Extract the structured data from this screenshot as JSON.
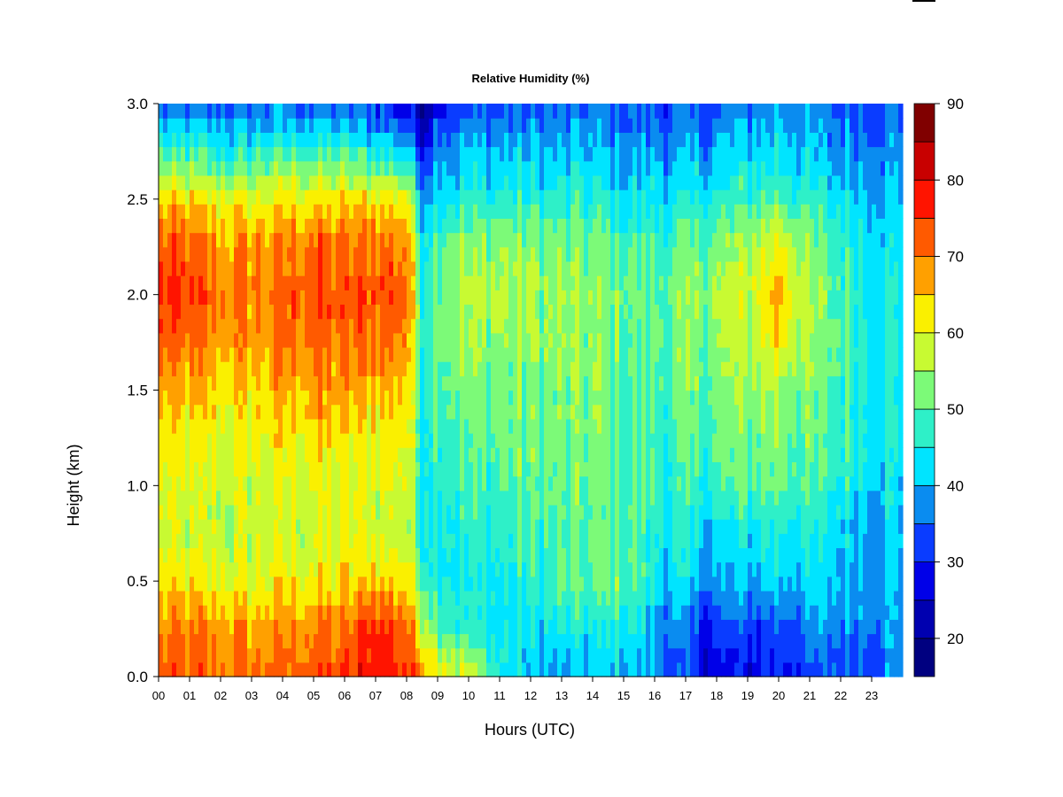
{
  "chart_data": {
    "type": "heatmap",
    "title": "Relative Humidity (%)",
    "xlabel": "Hours (UTC)",
    "ylabel": "Height (km)",
    "xlim": [
      0,
      24
    ],
    "ylim": [
      0.0,
      3.0
    ],
    "x_ticks": [
      "00",
      "01",
      "02",
      "03",
      "04",
      "05",
      "06",
      "07",
      "08",
      "09",
      "10",
      "11",
      "12",
      "13",
      "14",
      "15",
      "16",
      "17",
      "18",
      "19",
      "20",
      "21",
      "22",
      "23"
    ],
    "y_ticks": [
      "0.0",
      "0.5",
      "1.0",
      "1.5",
      "2.0",
      "2.5",
      "3.0"
    ],
    "colorbar": {
      "min": 15,
      "max": 90,
      "step": 5,
      "tick_labels": [
        "20",
        "30",
        "40",
        "50",
        "60",
        "70",
        "80",
        "90"
      ],
      "levels": [
        {
          "from": 15,
          "to": 20,
          "color": "#000080"
        },
        {
          "from": 20,
          "to": 25,
          "color": "#0000B0"
        },
        {
          "from": 25,
          "to": 30,
          "color": "#0000E8"
        },
        {
          "from": 30,
          "to": 35,
          "color": "#0A3CFF"
        },
        {
          "from": 35,
          "to": 40,
          "color": "#0A8CF0"
        },
        {
          "from": 40,
          "to": 45,
          "color": "#00E4FF"
        },
        {
          "from": 45,
          "to": 50,
          "color": "#2EF0C8"
        },
        {
          "from": 50,
          "to": 55,
          "color": "#7CFA78"
        },
        {
          "from": 55,
          "to": 60,
          "color": "#C8FA32"
        },
        {
          "from": 60,
          "to": 65,
          "color": "#FAF000"
        },
        {
          "from": 65,
          "to": 70,
          "color": "#FFA000"
        },
        {
          "from": 70,
          "to": 75,
          "color": "#FF5A00"
        },
        {
          "from": 75,
          "to": 80,
          "color": "#FF1400"
        },
        {
          "from": 80,
          "to": 85,
          "color": "#C80000"
        },
        {
          "from": 85,
          "to": 90,
          "color": "#800000"
        }
      ]
    },
    "heights_km": [
      0.0,
      0.25,
      0.5,
      0.75,
      1.0,
      1.25,
      1.5,
      1.75,
      2.0,
      2.25,
      2.5,
      2.75,
      3.0
    ],
    "hours": [
      0,
      1,
      2,
      3,
      4,
      5,
      6,
      7,
      8,
      8.5,
      9,
      10,
      11,
      12,
      13,
      14,
      15,
      16,
      17,
      18,
      19,
      20,
      21,
      22,
      23,
      24
    ],
    "values": [
      [
        72,
        73,
        71,
        72,
        72,
        73,
        73,
        80,
        76,
        70,
        64,
        58,
        45,
        40,
        38,
        40,
        40,
        38,
        30,
        27,
        28,
        30,
        30,
        34,
        36,
        38
      ],
      [
        68,
        70,
        68,
        68,
        68,
        70,
        70,
        78,
        72,
        60,
        52,
        46,
        43,
        43,
        44,
        44,
        46,
        40,
        33,
        31,
        32,
        34,
        36,
        38,
        38,
        38
      ],
      [
        62,
        62,
        60,
        60,
        62,
        62,
        62,
        66,
        64,
        50,
        46,
        44,
        44,
        46,
        50,
        50,
        52,
        44,
        40,
        38,
        40,
        42,
        42,
        40,
        40,
        40
      ],
      [
        58,
        57,
        56,
        57,
        57,
        58,
        59,
        58,
        58,
        46,
        46,
        46,
        47,
        48,
        48,
        50,
        50,
        46,
        44,
        42,
        44,
        46,
        44,
        42,
        41,
        40
      ],
      [
        60,
        58,
        58,
        58,
        59,
        60,
        60,
        60,
        60,
        46,
        48,
        48,
        49,
        50,
        50,
        51,
        50,
        48,
        46,
        48,
        50,
        52,
        48,
        46,
        44,
        42
      ],
      [
        62,
        60,
        60,
        60,
        62,
        63,
        62,
        62,
        62,
        46,
        50,
        50,
        51,
        52,
        52,
        52,
        50,
        48,
        48,
        50,
        52,
        54,
        50,
        48,
        46,
        44
      ],
      [
        66,
        64,
        63,
        64,
        66,
        68,
        66,
        66,
        66,
        46,
        52,
        52,
        52,
        52,
        52,
        53,
        50,
        49,
        50,
        52,
        54,
        56,
        52,
        48,
        46,
        44
      ],
      [
        72,
        70,
        68,
        68,
        70,
        72,
        70,
        72,
        70,
        48,
        53,
        54,
        54,
        54,
        53,
        54,
        51,
        50,
        52,
        54,
        56,
        64,
        54,
        50,
        46,
        44
      ],
      [
        76,
        74,
        70,
        70,
        72,
        74,
        73,
        75,
        72,
        48,
        54,
        56,
        56,
        55,
        54,
        54,
        52,
        50,
        52,
        55,
        58,
        68,
        54,
        50,
        46,
        44
      ],
      [
        73,
        71,
        68,
        68,
        70,
        72,
        70,
        72,
        70,
        46,
        52,
        54,
        54,
        54,
        52,
        52,
        50,
        48,
        50,
        52,
        56,
        62,
        52,
        48,
        45,
        43
      ],
      [
        64,
        62,
        60,
        61,
        62,
        63,
        62,
        64,
        62,
        40,
        44,
        46,
        46,
        46,
        46,
        46,
        44,
        44,
        44,
        46,
        48,
        50,
        46,
        44,
        42,
        40
      ],
      [
        48,
        47,
        46,
        46,
        48,
        48,
        47,
        46,
        42,
        30,
        38,
        40,
        40,
        40,
        40,
        40,
        39,
        38,
        38,
        40,
        42,
        44,
        40,
        38,
        38,
        38
      ],
      [
        34,
        34,
        34,
        34,
        34,
        34,
        33,
        32,
        28,
        20,
        30,
        32,
        33,
        34,
        34,
        34,
        34,
        32,
        32,
        34,
        36,
        38,
        36,
        34,
        34,
        34
      ]
    ]
  }
}
